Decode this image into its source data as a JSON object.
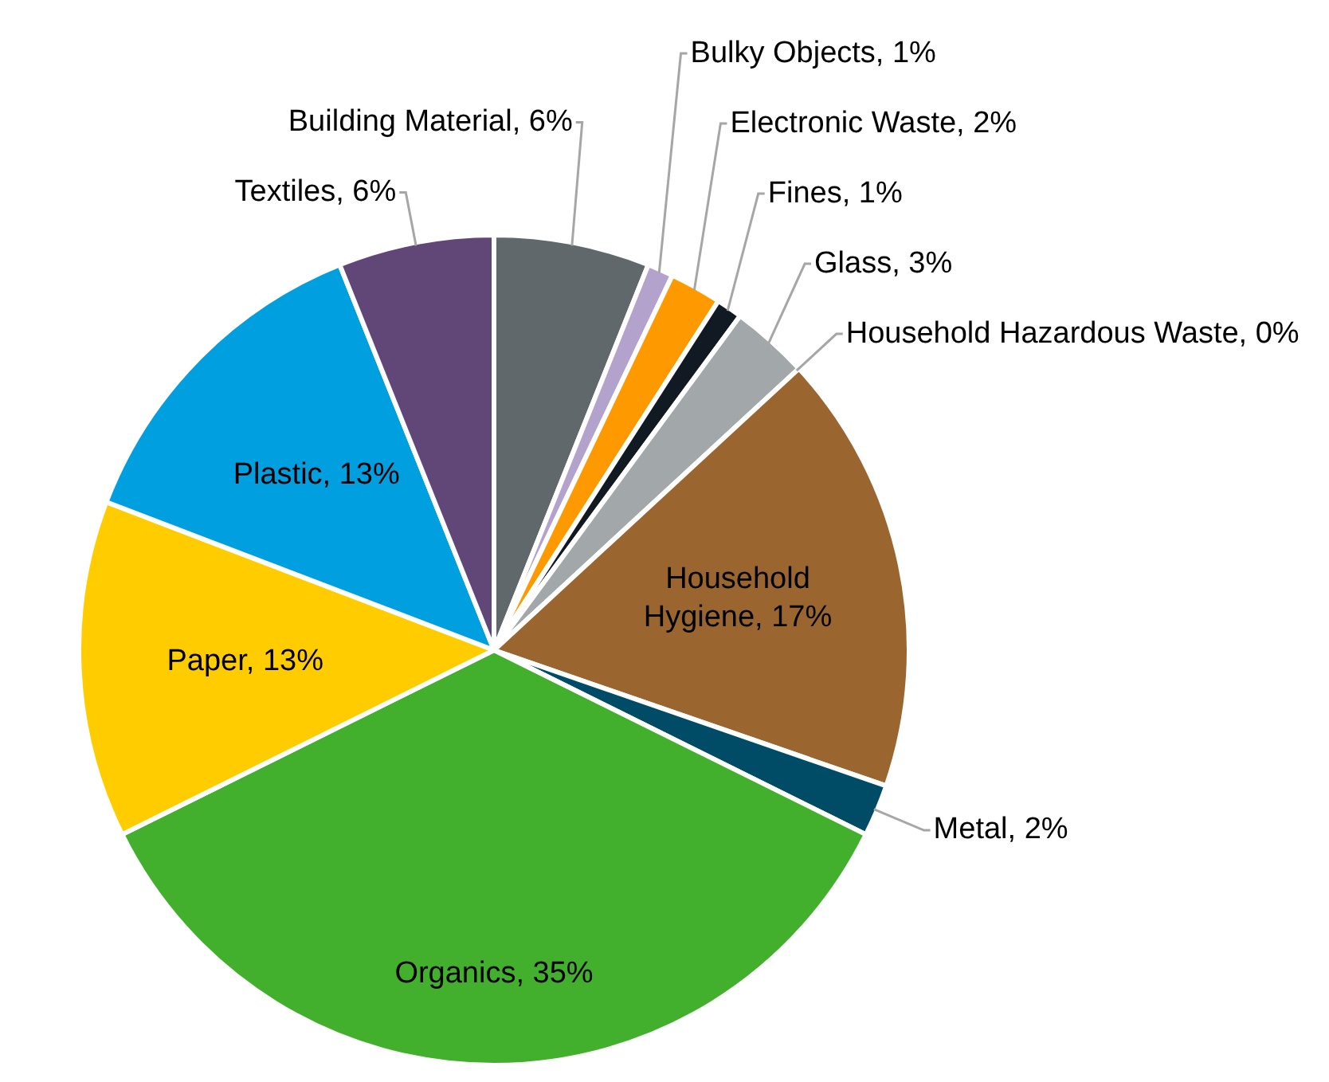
{
  "chart_data": {
    "type": "pie",
    "categories": [
      "Building Material",
      "Bulky Objects",
      "Electronic Waste",
      "Fines",
      "Glass",
      "Household Hazardous Waste",
      "Household Hygiene",
      "Metal",
      "Organics",
      "Paper",
      "Plastic",
      "Textiles"
    ],
    "values": [
      6,
      1,
      2,
      1,
      3,
      0,
      17,
      2,
      35,
      13,
      13,
      6
    ],
    "value_labels": [
      "6%",
      "1%",
      "2%",
      "1%",
      "3%",
      "0%",
      "17%",
      "2%",
      "35%",
      "13%",
      "13%",
      "6%"
    ],
    "colors": [
      "#61686c",
      "#b3a2cc",
      "#ff9900",
      "#111a22",
      "#a2a7aa",
      "#7f7f7f",
      "#9b6530",
      "#004b66",
      "#42b02c",
      "#ffcc00",
      "#009fe0",
      "#614778"
    ]
  }
}
